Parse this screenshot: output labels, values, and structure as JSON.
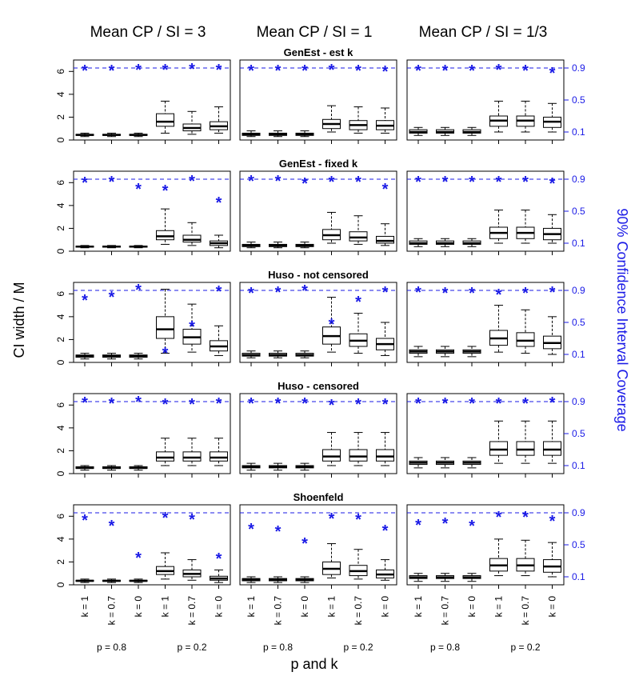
{
  "figure": {
    "column_titles": [
      "Mean CP / SI = 3",
      "Mean CP / SI = 1",
      "Mean CP / SI = 1/3"
    ],
    "row_titles": [
      "GenEst - est k",
      "GenEst - fixed k",
      "Huso - not censored",
      "Huso - censored",
      "Shoenfeld"
    ],
    "y_label_left": "CI width / M",
    "y_label_right": "90% Confidence Interval Coverage",
    "x_label": "p and k",
    "left_ticks": [
      "0",
      "2",
      "4",
      "6"
    ],
    "right_ticks": [
      "0.1",
      "0.5",
      "0.9"
    ],
    "x_tick_labels": [
      "k = 1",
      "k = 0.7",
      "k = 0",
      "k = 1",
      "k = 0.7",
      "k = 0"
    ],
    "group_labels": [
      "p = 0.8",
      "p = 0.2"
    ]
  },
  "colors": {
    "coverage": "#1a1ae6",
    "axis": "#000000"
  },
  "chart_data": {
    "type": "boxplot",
    "ylim_left": [
      0,
      7
    ],
    "ylim_right": [
      0,
      1
    ],
    "coverage_reference": 0.9,
    "categories": [
      "k = 1",
      "k = 0.7",
      "k = 0",
      "k = 1",
      "k = 0.7",
      "k = 0"
    ],
    "panels": [
      [
        {
          "boxes": [
            {
              "lw": 0.3,
              "q1": 0.4,
              "med": 0.45,
              "q3": 0.5,
              "uw": 0.6
            },
            {
              "lw": 0.3,
              "q1": 0.4,
              "med": 0.45,
              "q3": 0.5,
              "uw": 0.6
            },
            {
              "lw": 0.3,
              "q1": 0.4,
              "med": 0.45,
              "q3": 0.5,
              "uw": 0.6
            },
            {
              "lw": 0.6,
              "q1": 1.2,
              "med": 1.6,
              "q3": 2.3,
              "uw": 3.4
            },
            {
              "lw": 0.5,
              "q1": 0.8,
              "med": 1.05,
              "q3": 1.4,
              "uw": 2.5
            },
            {
              "lw": 0.6,
              "q1": 0.9,
              "med": 1.2,
              "q3": 1.6,
              "uw": 2.9
            }
          ],
          "coverage": [
            0.89,
            0.89,
            0.9,
            0.9,
            0.91,
            0.9
          ]
        },
        {
          "boxes": [
            {
              "lw": 0.3,
              "q1": 0.4,
              "med": 0.5,
              "q3": 0.6,
              "uw": 0.8
            },
            {
              "lw": 0.3,
              "q1": 0.4,
              "med": 0.5,
              "q3": 0.6,
              "uw": 0.8
            },
            {
              "lw": 0.3,
              "q1": 0.4,
              "med": 0.5,
              "q3": 0.6,
              "uw": 0.8
            },
            {
              "lw": 0.7,
              "q1": 1.0,
              "med": 1.4,
              "q3": 1.8,
              "uw": 3.0
            },
            {
              "lw": 0.6,
              "q1": 0.9,
              "med": 1.3,
              "q3": 1.7,
              "uw": 2.9
            },
            {
              "lw": 0.6,
              "q1": 0.9,
              "med": 1.25,
              "q3": 1.7,
              "uw": 2.8
            }
          ],
          "coverage": [
            0.89,
            0.89,
            0.89,
            0.9,
            0.89,
            0.88
          ]
        },
        {
          "boxes": [
            {
              "lw": 0.4,
              "q1": 0.6,
              "med": 0.7,
              "q3": 0.9,
              "uw": 1.1
            },
            {
              "lw": 0.4,
              "q1": 0.6,
              "med": 0.7,
              "q3": 0.9,
              "uw": 1.1
            },
            {
              "lw": 0.4,
              "q1": 0.6,
              "med": 0.7,
              "q3": 0.9,
              "uw": 1.1
            },
            {
              "lw": 0.7,
              "q1": 1.2,
              "med": 1.7,
              "q3": 2.1,
              "uw": 3.4
            },
            {
              "lw": 0.7,
              "q1": 1.2,
              "med": 1.7,
              "q3": 2.1,
              "uw": 3.4
            },
            {
              "lw": 0.7,
              "q1": 1.1,
              "med": 1.6,
              "q3": 2.0,
              "uw": 3.2
            }
          ],
          "coverage": [
            0.89,
            0.89,
            0.89,
            0.9,
            0.89,
            0.86
          ]
        }
      ],
      [
        {
          "boxes": [
            {
              "lw": 0.3,
              "q1": 0.35,
              "med": 0.4,
              "q3": 0.45,
              "uw": 0.5
            },
            {
              "lw": 0.3,
              "q1": 0.35,
              "med": 0.4,
              "q3": 0.45,
              "uw": 0.5
            },
            {
              "lw": 0.3,
              "q1": 0.35,
              "med": 0.4,
              "q3": 0.45,
              "uw": 0.5
            },
            {
              "lw": 0.6,
              "q1": 1.0,
              "med": 1.3,
              "q3": 1.8,
              "uw": 3.7
            },
            {
              "lw": 0.5,
              "q1": 0.8,
              "med": 1.0,
              "q3": 1.4,
              "uw": 2.5
            },
            {
              "lw": 0.3,
              "q1": 0.5,
              "med": 0.7,
              "q3": 0.9,
              "uw": 1.4
            }
          ],
          "coverage": [
            0.88,
            0.89,
            0.8,
            0.78,
            0.9,
            0.63
          ]
        },
        {
          "boxes": [
            {
              "lw": 0.3,
              "q1": 0.4,
              "med": 0.5,
              "q3": 0.6,
              "uw": 0.8
            },
            {
              "lw": 0.3,
              "q1": 0.4,
              "med": 0.5,
              "q3": 0.6,
              "uw": 0.8
            },
            {
              "lw": 0.3,
              "q1": 0.4,
              "med": 0.5,
              "q3": 0.6,
              "uw": 0.8
            },
            {
              "lw": 0.7,
              "q1": 1.0,
              "med": 1.4,
              "q3": 1.9,
              "uw": 3.4
            },
            {
              "lw": 0.6,
              "q1": 0.9,
              "med": 1.2,
              "q3": 1.7,
              "uw": 3.1
            },
            {
              "lw": 0.5,
              "q1": 0.7,
              "med": 0.9,
              "q3": 1.3,
              "uw": 2.4
            }
          ],
          "coverage": [
            0.9,
            0.9,
            0.87,
            0.89,
            0.89,
            0.8
          ]
        },
        {
          "boxes": [
            {
              "lw": 0.4,
              "q1": 0.6,
              "med": 0.7,
              "q3": 0.9,
              "uw": 1.1
            },
            {
              "lw": 0.4,
              "q1": 0.6,
              "med": 0.7,
              "q3": 0.9,
              "uw": 1.1
            },
            {
              "lw": 0.4,
              "q1": 0.6,
              "med": 0.7,
              "q3": 0.9,
              "uw": 1.1
            },
            {
              "lw": 0.7,
              "q1": 1.1,
              "med": 1.6,
              "q3": 2.1,
              "uw": 3.6
            },
            {
              "lw": 0.7,
              "q1": 1.1,
              "med": 1.6,
              "q3": 2.1,
              "uw": 3.6
            },
            {
              "lw": 0.7,
              "q1": 1.0,
              "med": 1.5,
              "q3": 2.0,
              "uw": 3.2
            }
          ],
          "coverage": [
            0.89,
            0.89,
            0.89,
            0.89,
            0.89,
            0.87
          ]
        }
      ],
      [
        {
          "boxes": [
            {
              "lw": 0.3,
              "q1": 0.45,
              "med": 0.55,
              "q3": 0.65,
              "uw": 0.8
            },
            {
              "lw": 0.3,
              "q1": 0.45,
              "med": 0.55,
              "q3": 0.65,
              "uw": 0.8
            },
            {
              "lw": 0.3,
              "q1": 0.45,
              "med": 0.55,
              "q3": 0.65,
              "uw": 0.8
            },
            {
              "lw": 0.8,
              "q1": 2.1,
              "med": 2.9,
              "q3": 4.0,
              "uw": 6.4
            },
            {
              "lw": 0.9,
              "q1": 1.6,
              "med": 2.2,
              "q3": 2.9,
              "uw": 5.1
            },
            {
              "lw": 0.6,
              "q1": 1.0,
              "med": 1.4,
              "q3": 1.9,
              "uw": 3.2
            }
          ],
          "coverage": [
            0.8,
            0.84,
            0.93,
            0.14,
            0.47,
            0.91
          ]
        },
        {
          "boxes": [
            {
              "lw": 0.4,
              "q1": 0.55,
              "med": 0.65,
              "q3": 0.8,
              "uw": 1.0
            },
            {
              "lw": 0.4,
              "q1": 0.55,
              "med": 0.65,
              "q3": 0.8,
              "uw": 1.0
            },
            {
              "lw": 0.4,
              "q1": 0.55,
              "med": 0.65,
              "q3": 0.8,
              "uw": 1.0
            },
            {
              "lw": 0.9,
              "q1": 1.6,
              "med": 2.3,
              "q3": 3.1,
              "uw": 5.7
            },
            {
              "lw": 0.8,
              "q1": 1.4,
              "med": 1.9,
              "q3": 2.5,
              "uw": 4.3
            },
            {
              "lw": 0.6,
              "q1": 1.1,
              "med": 1.6,
              "q3": 2.1,
              "uw": 3.5
            }
          ],
          "coverage": [
            0.89,
            0.9,
            0.92,
            0.5,
            0.78,
            0.9
          ]
        },
        {
          "boxes": [
            {
              "lw": 0.5,
              "q1": 0.8,
              "med": 0.95,
              "q3": 1.1,
              "uw": 1.4
            },
            {
              "lw": 0.5,
              "q1": 0.8,
              "med": 0.95,
              "q3": 1.1,
              "uw": 1.4
            },
            {
              "lw": 0.5,
              "q1": 0.8,
              "med": 0.95,
              "q3": 1.1,
              "uw": 1.4
            },
            {
              "lw": 0.9,
              "q1": 1.5,
              "med": 2.1,
              "q3": 2.8,
              "uw": 5.0
            },
            {
              "lw": 0.8,
              "q1": 1.4,
              "med": 1.9,
              "q3": 2.6,
              "uw": 4.6
            },
            {
              "lw": 0.7,
              "q1": 1.2,
              "med": 1.7,
              "q3": 2.3,
              "uw": 4.0
            }
          ],
          "coverage": [
            0.9,
            0.89,
            0.89,
            0.87,
            0.89,
            0.9
          ]
        }
      ],
      [
        {
          "boxes": [
            {
              "lw": 0.3,
              "q1": 0.45,
              "med": 0.5,
              "q3": 0.6,
              "uw": 0.7
            },
            {
              "lw": 0.3,
              "q1": 0.45,
              "med": 0.5,
              "q3": 0.6,
              "uw": 0.7
            },
            {
              "lw": 0.3,
              "q1": 0.45,
              "med": 0.5,
              "q3": 0.6,
              "uw": 0.7
            },
            {
              "lw": 0.7,
              "q1": 1.1,
              "med": 1.4,
              "q3": 1.9,
              "uw": 3.1
            },
            {
              "lw": 0.7,
              "q1": 1.1,
              "med": 1.4,
              "q3": 1.9,
              "uw": 3.1
            },
            {
              "lw": 0.7,
              "q1": 1.1,
              "med": 1.4,
              "q3": 1.9,
              "uw": 3.1
            }
          ],
          "coverage": [
            0.91,
            0.9,
            0.92,
            0.89,
            0.89,
            0.9
          ]
        },
        {
          "boxes": [
            {
              "lw": 0.3,
              "q1": 0.5,
              "med": 0.6,
              "q3": 0.7,
              "uw": 0.9
            },
            {
              "lw": 0.3,
              "q1": 0.5,
              "med": 0.6,
              "q3": 0.7,
              "uw": 0.9
            },
            {
              "lw": 0.3,
              "q1": 0.5,
              "med": 0.6,
              "q3": 0.7,
              "uw": 0.9
            },
            {
              "lw": 0.7,
              "q1": 1.1,
              "med": 1.5,
              "q3": 2.1,
              "uw": 3.6
            },
            {
              "lw": 0.7,
              "q1": 1.1,
              "med": 1.5,
              "q3": 2.1,
              "uw": 3.6
            },
            {
              "lw": 0.7,
              "q1": 1.1,
              "med": 1.5,
              "q3": 2.1,
              "uw": 3.6
            }
          ],
          "coverage": [
            0.9,
            0.9,
            0.9,
            0.88,
            0.89,
            0.89
          ]
        },
        {
          "boxes": [
            {
              "lw": 0.5,
              "q1": 0.8,
              "med": 0.95,
              "q3": 1.1,
              "uw": 1.4
            },
            {
              "lw": 0.5,
              "q1": 0.8,
              "med": 0.95,
              "q3": 1.1,
              "uw": 1.4
            },
            {
              "lw": 0.5,
              "q1": 0.8,
              "med": 0.95,
              "q3": 1.1,
              "uw": 1.4
            },
            {
              "lw": 0.9,
              "q1": 1.6,
              "med": 2.1,
              "q3": 2.8,
              "uw": 4.6
            },
            {
              "lw": 0.9,
              "q1": 1.6,
              "med": 2.1,
              "q3": 2.8,
              "uw": 4.6
            },
            {
              "lw": 0.9,
              "q1": 1.6,
              "med": 2.1,
              "q3": 2.8,
              "uw": 4.6
            }
          ],
          "coverage": [
            0.9,
            0.9,
            0.9,
            0.9,
            0.9,
            0.91
          ]
        }
      ],
      [
        {
          "boxes": [
            {
              "lw": 0.2,
              "q1": 0.3,
              "med": 0.35,
              "q3": 0.4,
              "uw": 0.5
            },
            {
              "lw": 0.2,
              "q1": 0.3,
              "med": 0.35,
              "q3": 0.4,
              "uw": 0.5
            },
            {
              "lw": 0.2,
              "q1": 0.3,
              "med": 0.35,
              "q3": 0.4,
              "uw": 0.5
            },
            {
              "lw": 0.5,
              "q1": 0.9,
              "med": 1.2,
              "q3": 1.6,
              "uw": 2.8
            },
            {
              "lw": 0.4,
              "q1": 0.7,
              "med": 0.95,
              "q3": 1.3,
              "uw": 2.2
            },
            {
              "lw": 0.2,
              "q1": 0.4,
              "med": 0.55,
              "q3": 0.75,
              "uw": 1.3
            }
          ],
          "coverage": [
            0.83,
            0.76,
            0.36,
            0.86,
            0.84,
            0.35
          ]
        },
        {
          "boxes": [
            {
              "lw": 0.2,
              "q1": 0.35,
              "med": 0.45,
              "q3": 0.55,
              "uw": 0.7
            },
            {
              "lw": 0.2,
              "q1": 0.35,
              "med": 0.45,
              "q3": 0.55,
              "uw": 0.7
            },
            {
              "lw": 0.2,
              "q1": 0.35,
              "med": 0.45,
              "q3": 0.55,
              "uw": 0.7
            },
            {
              "lw": 0.6,
              "q1": 0.9,
              "med": 1.4,
              "q3": 2.0,
              "uw": 3.6
            },
            {
              "lw": 0.5,
              "q1": 0.8,
              "med": 1.2,
              "q3": 1.7,
              "uw": 3.1
            },
            {
              "lw": 0.4,
              "q1": 0.6,
              "med": 0.9,
              "q3": 1.3,
              "uw": 2.2
            }
          ],
          "coverage": [
            0.72,
            0.69,
            0.54,
            0.85,
            0.84,
            0.7
          ]
        },
        {
          "boxes": [
            {
              "lw": 0.3,
              "q1": 0.55,
              "med": 0.65,
              "q3": 0.8,
              "uw": 1.0
            },
            {
              "lw": 0.3,
              "q1": 0.55,
              "med": 0.65,
              "q3": 0.8,
              "uw": 1.0
            },
            {
              "lw": 0.3,
              "q1": 0.55,
              "med": 0.65,
              "q3": 0.8,
              "uw": 1.0
            },
            {
              "lw": 0.8,
              "q1": 1.2,
              "med": 1.7,
              "q3": 2.3,
              "uw": 4.0
            },
            {
              "lw": 0.8,
              "q1": 1.2,
              "med": 1.7,
              "q3": 2.3,
              "uw": 3.9
            },
            {
              "lw": 0.7,
              "q1": 1.1,
              "med": 1.6,
              "q3": 2.2,
              "uw": 3.7
            }
          ],
          "coverage": [
            0.77,
            0.79,
            0.76,
            0.87,
            0.87,
            0.82
          ]
        }
      ]
    ]
  }
}
